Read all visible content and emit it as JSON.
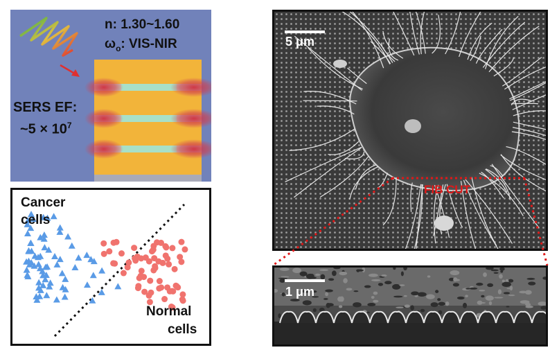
{
  "schematic": {
    "refractive_index": "n: 1.30~1.60",
    "omega_symbol": "ω",
    "omega_subscript": "o",
    "omega_text": ": VIS-NIR",
    "sers_label_line1": "SERS EF:",
    "sers_label_line2": "~5 × 10",
    "sers_exponent": "7",
    "colors": {
      "background": "#7182ba",
      "slab": "#f2b43a",
      "gap": "#a8e0c8",
      "hotspot": "#c8323c"
    }
  },
  "scatter": {
    "cancer_label_line1": "Cancer",
    "cancer_label_line2": "cells",
    "normal_label_line1": "Normal",
    "normal_label_line2": "cells",
    "colors": {
      "cancer": "#5a9be6",
      "normal": "#f0736e",
      "divider": "#111111"
    }
  },
  "sem_main": {
    "scale_label": "5 μm",
    "annotation": "FIB CUT",
    "colors": {
      "annotation": "#e01818"
    }
  },
  "sem_cross": {
    "scale_label": "1 μm"
  }
}
